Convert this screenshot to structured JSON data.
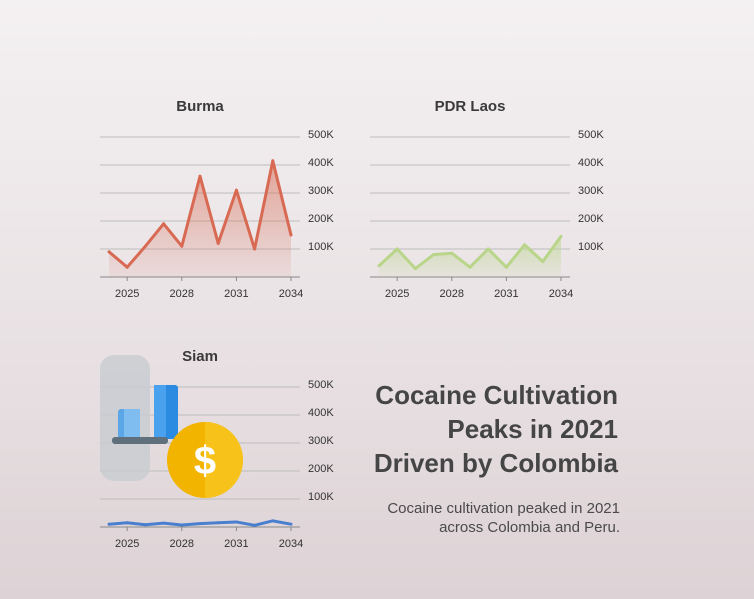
{
  "headline_lines": [
    "Cocaine Cultivation",
    "Peaks in 2021",
    "Driven by Colombia"
  ],
  "subtext_lines": [
    "Cocaine cultivation peaked in 2021",
    "across Colombia and Peru."
  ],
  "colors": {
    "burma": "#d86a54",
    "laos": "#b9d58a",
    "siam": "#4a7fd0",
    "grid": "#bdbdbd",
    "text": "#3a3a3a"
  },
  "illustration": {
    "icons": [
      "bar-chart-icon",
      "dollar-coin-icon"
    ],
    "coin_symbol": "$"
  },
  "chart_data": [
    {
      "type": "area",
      "title": "Burma",
      "x": [
        2024,
        2025,
        2026,
        2027,
        2028,
        2029,
        2030,
        2031,
        2032,
        2033,
        2034
      ],
      "values": [
        90000,
        35000,
        110000,
        190000,
        110000,
        360000,
        120000,
        310000,
        100000,
        415000,
        150000
      ],
      "ylim": [
        0,
        500000
      ],
      "yticks": [
        100000,
        200000,
        300000,
        400000,
        500000
      ],
      "ytick_labels": [
        "100K",
        "200K",
        "300K",
        "400K",
        "500K"
      ],
      "xticks": [
        2025,
        2028,
        2031,
        2034
      ],
      "grid": true,
      "yaxis_position": "right"
    },
    {
      "type": "area",
      "title": "PDR Laos",
      "x": [
        2024,
        2025,
        2026,
        2027,
        2028,
        2029,
        2030,
        2031,
        2032,
        2033,
        2034
      ],
      "values": [
        40000,
        100000,
        30000,
        80000,
        85000,
        35000,
        100000,
        35000,
        115000,
        55000,
        145000
      ],
      "ylim": [
        0,
        500000
      ],
      "yticks": [
        100000,
        200000,
        300000,
        400000,
        500000
      ],
      "ytick_labels": [
        "100K",
        "200K",
        "300K",
        "400K",
        "500K"
      ],
      "xticks": [
        2025,
        2028,
        2031,
        2034
      ],
      "grid": true,
      "yaxis_position": "right"
    },
    {
      "type": "line",
      "title": "Siam",
      "x": [
        2024,
        2025,
        2026,
        2027,
        2028,
        2029,
        2030,
        2031,
        2032,
        2033,
        2034
      ],
      "values": [
        10000,
        15000,
        8000,
        14000,
        7000,
        12000,
        15000,
        18000,
        6000,
        22000,
        10000
      ],
      "ylim": [
        0,
        500000
      ],
      "yticks": [
        100000,
        200000,
        300000,
        400000,
        500000
      ],
      "ytick_labels": [
        "100K",
        "200K",
        "300K",
        "400K",
        "500K"
      ],
      "xticks": [
        2025,
        2028,
        2031,
        2034
      ],
      "grid": true,
      "yaxis_position": "right"
    }
  ]
}
